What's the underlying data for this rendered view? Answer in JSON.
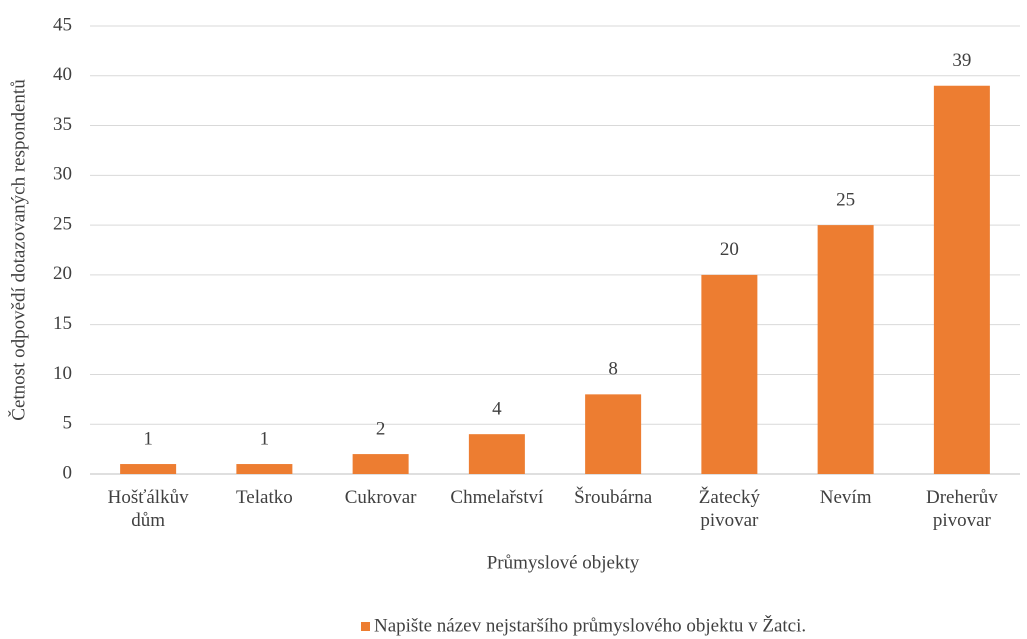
{
  "chart_data": {
    "type": "bar",
    "categories": [
      "Hošťálkův dům",
      "Telatko",
      "Cukrovar",
      "Chmelařství",
      "Šroubárna",
      "Žatecký pivovar",
      "Nevím",
      "Dreherův pivovar"
    ],
    "series": [
      {
        "name": "Napište název nejstaršího průmyslového objektu v Žatci.",
        "color": "#ed7d31",
        "values": [
          1,
          1,
          2,
          4,
          8,
          20,
          25,
          39
        ]
      }
    ],
    "x_label": "Průmyslové objekty",
    "y_label": "Četnost odpovědí dotazovaných respondentů",
    "ylim": [
      0,
      45
    ],
    "yticks": [
      0,
      5,
      10,
      15,
      20,
      25,
      30,
      35,
      40,
      45
    ],
    "grid": true,
    "legend": "bottom"
  }
}
